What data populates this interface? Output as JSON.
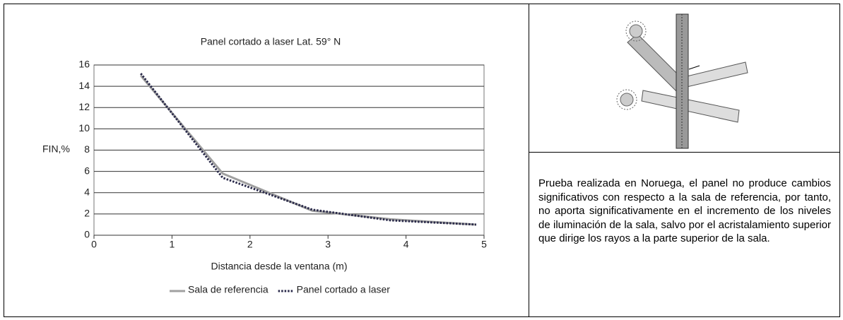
{
  "chart_data": {
    "type": "line",
    "title": "Panel cortado a laser Lat. 59° N",
    "x_label": "Distancia desde la ventana (m)",
    "y_label": "FIN,%",
    "x": [
      0.6,
      1.65,
      2.8,
      3.8,
      4.9
    ],
    "series": [
      {
        "name": "Sala de referencia",
        "color": "#a0a0a0",
        "style": "solid",
        "values": [
          15,
          5.8,
          2.3,
          1.5,
          1.0
        ]
      },
      {
        "name": "Panel cortado a laser",
        "color": "#2a2a4a",
        "style": "dotted",
        "values": [
          15.2,
          5.4,
          2.4,
          1.4,
          1.0
        ]
      }
    ],
    "xlim": [
      0,
      5
    ],
    "xticks": [
      0,
      1,
      2,
      3,
      4,
      5
    ],
    "ylim": [
      0,
      16
    ],
    "yticks": [
      0,
      2,
      4,
      6,
      8,
      10,
      12,
      14,
      16
    ],
    "grid": true,
    "legend": "bottom"
  },
  "description": "Prueba realizada en Noruega, el panel no produce cambios significativos con respecto a la sala de referencia, por tanto, no aporta significativamente en el incremento de los niveles de iluminación de la sala, salvo por el acristalamiento superior  que dirige los rayos a la parte superior de la sala."
}
